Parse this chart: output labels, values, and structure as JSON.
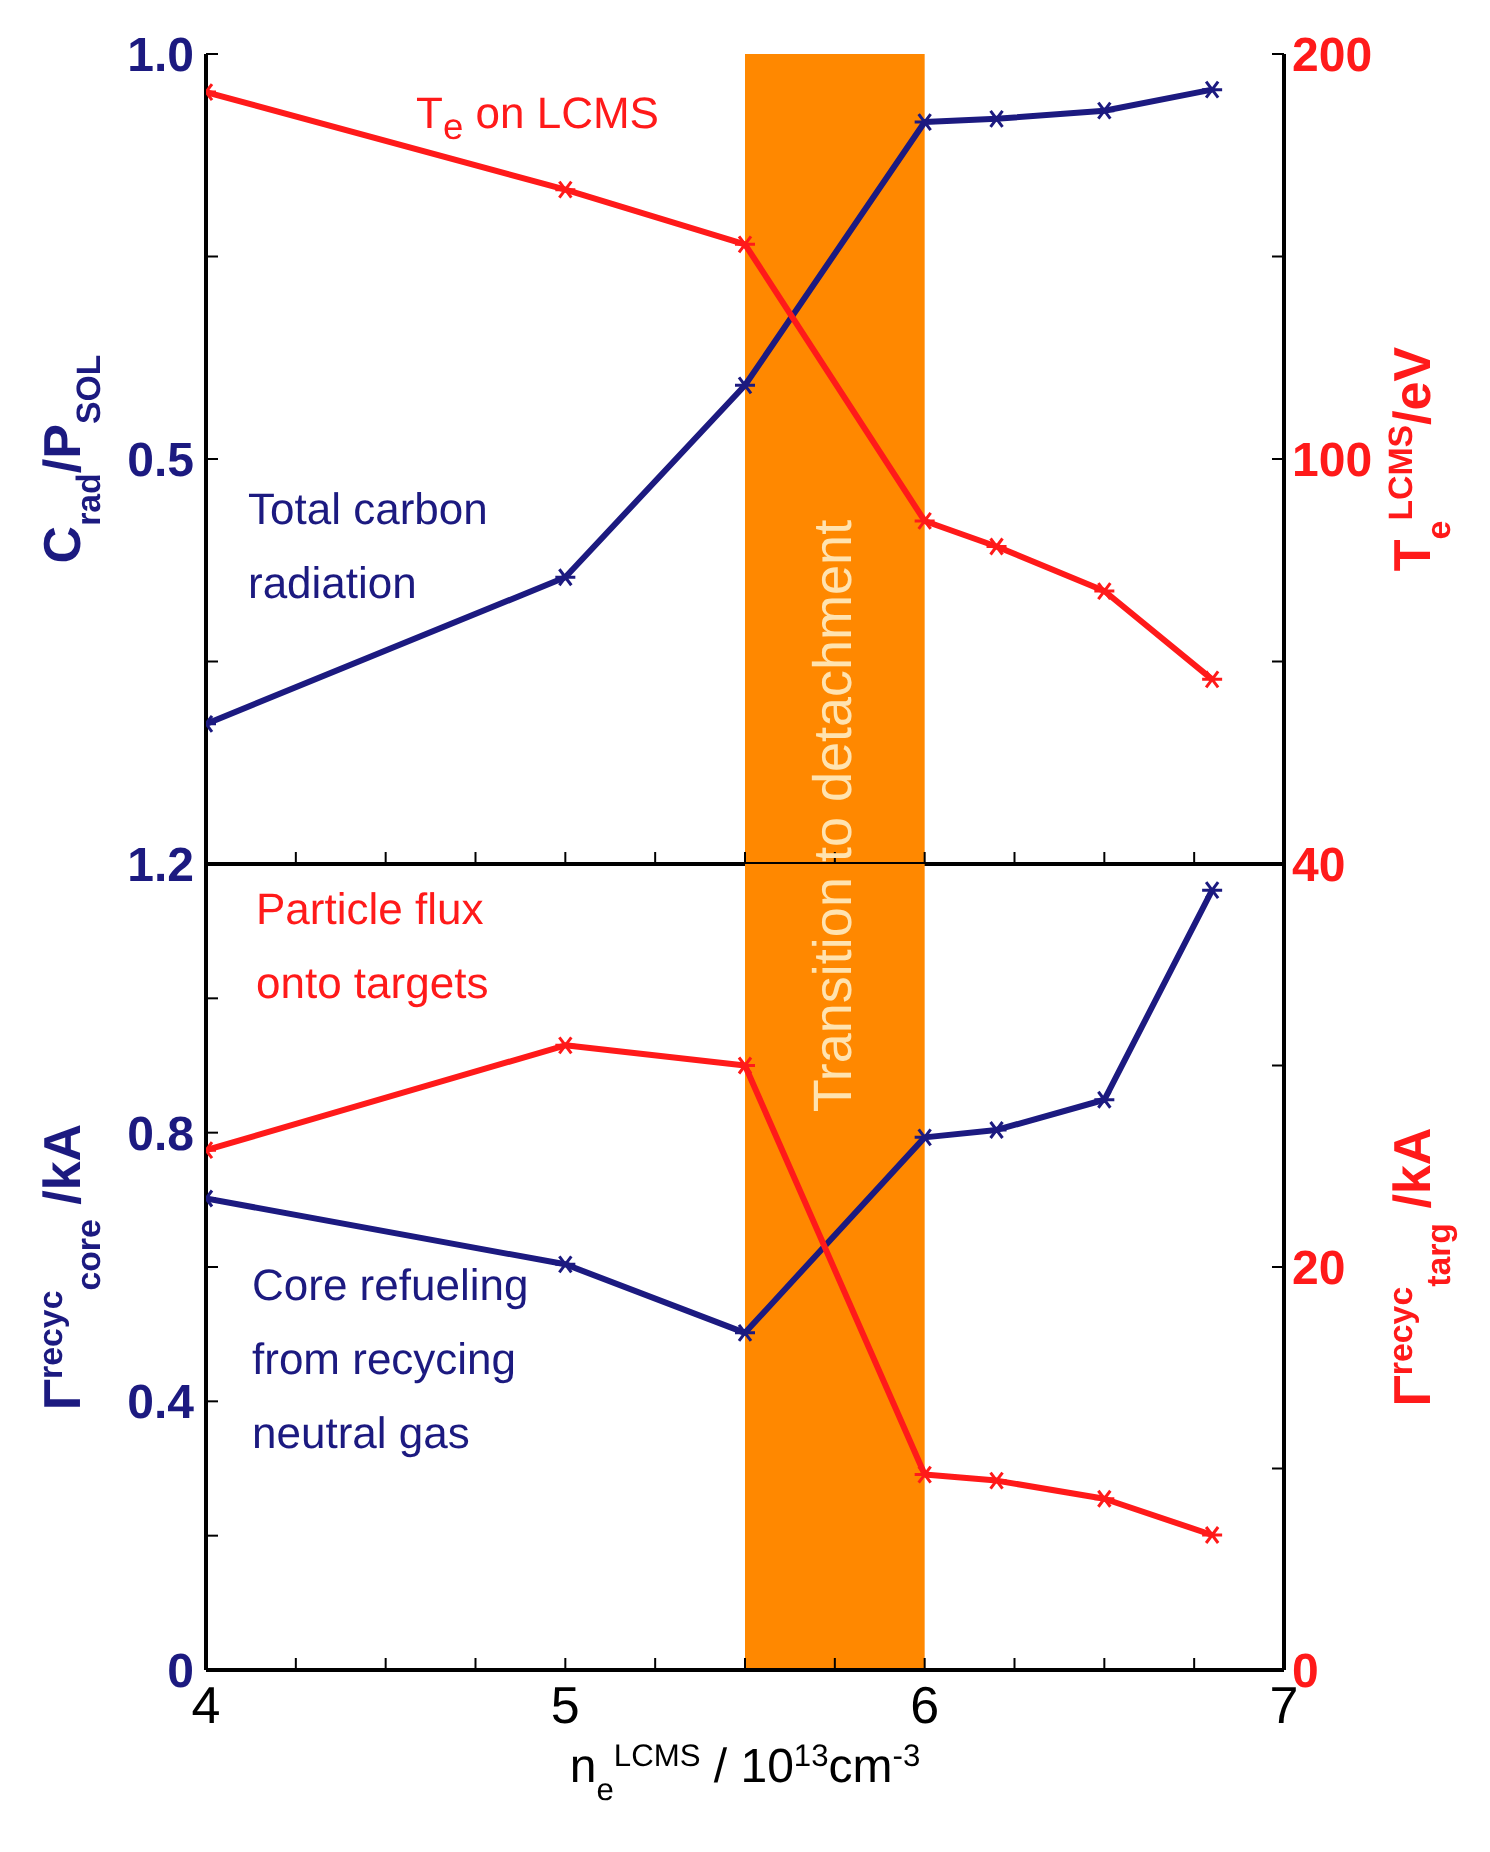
{
  "chart_data": [
    {
      "type": "line",
      "x": [
        4,
        5,
        5.5,
        6,
        6.2,
        6.5,
        6.8
      ],
      "ylabel": "C$_{rad}$/P$_{SOL}$",
      "y2label": "T$_{e}$$^{LCMS}$/eV",
      "xlim": [
        4,
        7
      ],
      "xticks": [
        4,
        {
          "value": 4.25,
          "label": null
        },
        {
          "value": 4.5,
          "label": null
        },
        {
          "value": 4.75,
          "label": null
        },
        5,
        {
          "value": 5.25,
          "label": null
        },
        {
          "value": 5.5,
          "label": null
        },
        {
          "value": 5.75,
          "label": null
        },
        6,
        {
          "value": 6.25,
          "label": null
        },
        {
          "value": 6.5,
          "label": null
        },
        {
          "value": 6.75,
          "label": null
        },
        7
      ],
      "ylim": [
        0,
        1
      ],
      "yticks": [
        {
          "value": 0,
          "label": null
        },
        {
          "value": 0.25,
          "label": null
        },
        0.5,
        {
          "value": 0.75,
          "label": null
        },
        {
          "value": 1,
          "label": "1.0"
        }
      ],
      "y2lim": [
        0,
        200
      ],
      "y2ticks": [
        {
          "value": 0,
          "label": null
        },
        {
          "value": 50,
          "label": null
        },
        100,
        {
          "value": 150,
          "label": null
        },
        200
      ],
      "tick_labels": "y",
      "marker": "cross",
      "bands": [
        {
          "axis": "x",
          "from": 5.5,
          "to": 6,
          "label": "Transition to detachment",
          "color": "#ff8800"
        }
      ],
      "series": [
        {
          "name": "Total carbon radiation",
          "color": "#1c1a80",
          "values": [
            0.173,
            0.354,
            0.591,
            0.916,
            0.92,
            0.93,
            0.956
          ]
        },
        {
          "name": "T$_{e}$ on LCMS",
          "color": "#ff1a1a",
          "axis": "y2",
          "values": [
            190.6,
            166.5,
            153,
            84.7,
            78.4,
            67.4,
            45.6
          ]
        }
      ]
    },
    {
      "type": "line",
      "x": [
        4,
        5,
        5.5,
        6,
        6.2,
        6.5,
        6.8
      ],
      "xlabel": "n$_{e}$$^{LCMS}$ / 10$^{13}$cm$^{-3}$",
      "ylabel": "Γ$^{recyc}$$_{core}$ /kA",
      "y2label": "Γ$^{recyc}$$_{targ}$ /kA",
      "xlim": [
        4,
        7
      ],
      "xticks": [
        4,
        {
          "value": 4.25,
          "label": null
        },
        {
          "value": 4.5,
          "label": null
        },
        {
          "value": 4.75,
          "label": null
        },
        5,
        {
          "value": 5.25,
          "label": null
        },
        {
          "value": 5.5,
          "label": null
        },
        {
          "value": 5.75,
          "label": null
        },
        6,
        {
          "value": 6.25,
          "label": null
        },
        {
          "value": 6.5,
          "label": null
        },
        {
          "value": 6.75,
          "label": null
        },
        7
      ],
      "ylim": [
        0,
        1.2
      ],
      "yticks": [
        0,
        {
          "value": 0.2,
          "label": null
        },
        0.4,
        {
          "value": 0.6,
          "label": null
        },
        0.8,
        {
          "value": 1,
          "label": null
        },
        1.2
      ],
      "y2lim": [
        0,
        40
      ],
      "y2ticks": [
        0,
        {
          "value": 10,
          "label": null
        },
        20,
        {
          "value": 30,
          "label": null
        },
        40
      ],
      "marker": "cross",
      "bands": [
        {
          "axis": "x",
          "from": 5.5,
          "to": 6,
          "color": "#ff8800"
        }
      ],
      "series": [
        {
          "name": "Core refueling from recycing neutral gas",
          "color": "#1c1a80",
          "values": [
            0.702,
            0.604,
            0.502,
            0.793,
            0.804,
            0.849,
            1.161
          ]
        },
        {
          "name": "Particle flux onto targets",
          "color": "#ff1a1a",
          "axis": "y2",
          "values": [
            25.8,
            31,
            30,
            9.7,
            9.4,
            8.5,
            6.7
          ]
        }
      ]
    }
  ]
}
